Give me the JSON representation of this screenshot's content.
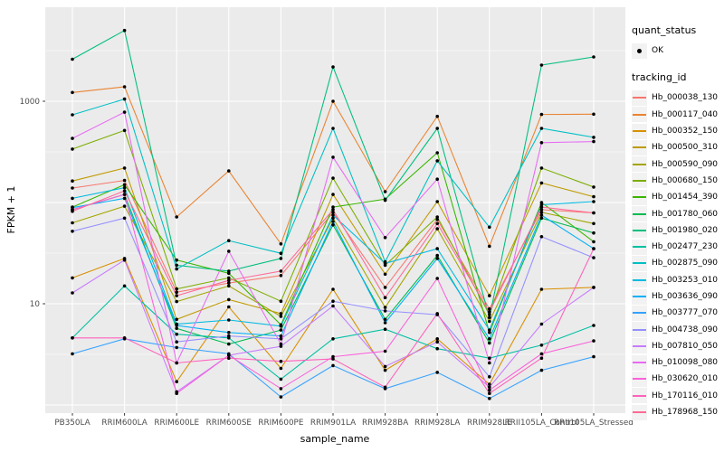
{
  "colors": {
    "panel_bg": "#EBEBEB",
    "grid": "#FFFFFF",
    "point": "#000000",
    "tick_label": "#4D4D4D",
    "axis_title": "#000000",
    "legend_key_bg": "#F2F2F2",
    "background": "#FFFFFF"
  },
  "chart_data": {
    "type": "line",
    "title": "",
    "xlabel": "sample_name",
    "ylabel": "FPKM + 1",
    "y_scale": "log10",
    "y_ticks": [
      {
        "value": 10,
        "label": "10"
      },
      {
        "value": 1000,
        "label": "1000"
      }
    ],
    "y_minor_gridlines": [
      3.162,
      31.62,
      316.2,
      3162
    ],
    "y_major_gridlines": [
      1,
      10,
      100,
      1000
    ],
    "ylim": [
      0.83,
      8500
    ],
    "grid": "on",
    "legend_position": "right",
    "x_categories": [
      "PB350LA",
      "RRIM600LA",
      "RRIM600LE",
      "RRIM600SE",
      "RRIM600PE",
      "RRIM901LA",
      "RRIM928BA",
      "RRIM928LA",
      "RRIM928LE",
      "RRII105LA_Control",
      "RRII105LA_Stressed"
    ],
    "legend": {
      "quant_status_title": "quant_status",
      "quant_status_items": [
        {
          "label": "OK",
          "marker": "point"
        }
      ],
      "tracking_id_title": "tracking_id"
    },
    "series": [
      {
        "name": "Hb_000038_130",
        "color": "#F8766D",
        "values": [
          139,
          165,
          13,
          16,
          19,
          80,
          14.5,
          68,
          8.9,
          85,
          79
        ]
      },
      {
        "name": "Hb_000117_040",
        "color": "#EA8331",
        "values": [
          1220,
          1390,
          72,
          205,
          39,
          1000,
          128,
          710,
          37,
          740,
          745
        ]
      },
      {
        "name": "Hb_000352_150",
        "color": "#D89000",
        "values": [
          18,
          28,
          1.7,
          9.3,
          2.3,
          13.9,
          2.2,
          4.5,
          1.6,
          13.9,
          14.5
        ]
      },
      {
        "name": "Hb_000500_310",
        "color": "#C09B00",
        "values": [
          163,
          219,
          7,
          11,
          8,
          120,
          19.6,
          102,
          12,
          156,
          114
        ]
      },
      {
        "name": "Hb_000590_090",
        "color": "#A3A500",
        "values": [
          63,
          92,
          10.5,
          15,
          7.5,
          70,
          9.2,
          55,
          6.7,
          80,
          62
        ]
      },
      {
        "name": "Hb_000680_150",
        "color": "#7CAE00",
        "values": [
          337,
          515,
          14,
          18,
          10.6,
          174,
          24,
          72,
          7.8,
          219,
          142
        ]
      },
      {
        "name": "Hb_001454_390",
        "color": "#39B600",
        "values": [
          90,
          150,
          27,
          20,
          6.2,
          90,
          108,
          310,
          5.2,
          100,
          41
        ]
      },
      {
        "name": "Hb_001780_060",
        "color": "#00BB4E",
        "values": [
          85,
          120,
          5.7,
          4.0,
          5.5,
          60,
          7.0,
          30,
          4.1,
          70,
          50
        ]
      },
      {
        "name": "Hb_001980_020",
        "color": "#00BF7D",
        "values": [
          2600,
          5000,
          24,
          21,
          28,
          2180,
          105,
          540,
          7.3,
          2275,
          2740
        ]
      },
      {
        "name": "Hb_002477_230",
        "color": "#00C1A3",
        "values": [
          4.6,
          15,
          5.0,
          4.6,
          1.8,
          4.5,
          5.6,
          3.6,
          2.9,
          3.9,
          6.1
        ]
      },
      {
        "name": "Hb_002875_090",
        "color": "#00BFC4",
        "values": [
          735,
          1050,
          22,
          42,
          31.5,
          540,
          26,
          258,
          57,
          540,
          440
        ]
      },
      {
        "name": "Hb_003253_010",
        "color": "#00BAE0",
        "values": [
          110,
          140,
          6.3,
          6.9,
          6.0,
          75,
          25,
          35,
          5.5,
          95,
          102
        ]
      },
      {
        "name": "Hb_003636_090",
        "color": "#00B0F6",
        "values": [
          89,
          110,
          6.1,
          5.2,
          4.8,
          65,
          6.5,
          28,
          4.5,
          75,
          35
        ]
      },
      {
        "name": "Hb_003777_070",
        "color": "#35A2FF",
        "values": [
          3.2,
          4.5,
          3.7,
          3.2,
          1.2,
          2.45,
          1.45,
          2.1,
          1.16,
          2.2,
          3.0
        ]
      },
      {
        "name": "Hb_004738_090",
        "color": "#9590FF",
        "values": [
          52,
          70,
          4.2,
          4.8,
          4.5,
          10.6,
          8.5,
          7.8,
          1.9,
          46,
          28.5
        ]
      },
      {
        "name": "Hb_007810_050",
        "color": "#C77CFF",
        "values": [
          12.8,
          27,
          1.35,
          3.1,
          3.8,
          9.5,
          2.4,
          4.2,
          1.5,
          6.3,
          14.5
        ]
      },
      {
        "name": "Hb_010098_080",
        "color": "#E76BF3",
        "values": [
          430,
          780,
          2.6,
          33,
          4.0,
          280,
          45,
          170,
          2.6,
          390,
          400
        ]
      },
      {
        "name": "Hb_030620_010",
        "color": "#FA62DB",
        "values": [
          85,
          120,
          1.3,
          3.1,
          1.45,
          3.0,
          3.4,
          17.8,
          1.4,
          3.2,
          4.3
        ]
      },
      {
        "name": "Hb_170116_010",
        "color": "#FF62BC",
        "values": [
          4.6,
          4.6,
          2.6,
          2.9,
          2.7,
          2.85,
          1.5,
          8.0,
          1.3,
          2.9,
          35
        ]
      },
      {
        "name": "Hb_178968_150",
        "color": "#FF6A98",
        "values": [
          82,
          130,
          12,
          17,
          21,
          85,
          11.5,
          62,
          8.3,
          90,
          79
        ]
      }
    ]
  }
}
